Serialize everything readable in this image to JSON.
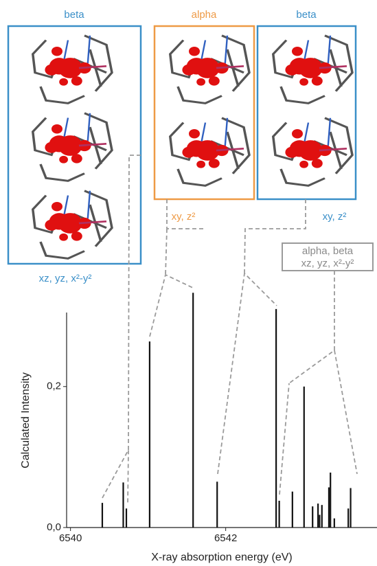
{
  "chart_data": {
    "type": "stick",
    "x_label": "X-ray absorption energy (eV)",
    "y_label": "Calculated Intensity",
    "x": [
      6540.41,
      6540.68,
      6540.72,
      6541.02,
      6541.58,
      6541.89,
      6542.65,
      6542.69,
      6542.86,
      6543.01,
      6543.12,
      6543.19,
      6543.21,
      6543.24,
      6543.33,
      6543.35,
      6543.4,
      6543.58,
      6543.61
    ],
    "values": [
      0.035,
      0.064,
      0.027,
      0.264,
      0.333,
      0.065,
      0.31,
      0.038,
      0.051,
      0.2,
      0.03,
      0.034,
      0.018,
      0.032,
      0.057,
      0.078,
      0.013,
      0.027,
      0.056
    ],
    "color": "#111111",
    "xlim": [
      6539.95,
      6543.95
    ],
    "ylim": [
      0,
      0.305
    ],
    "xticks": [
      6540,
      6542
    ],
    "yticks": [
      {
        "value": 0,
        "label": "0,0"
      },
      {
        "value": 0.2,
        "label": "0,2"
      }
    ],
    "annotations": [
      "beta",
      "alpha",
      "beta",
      "xz, yz, x²-y²",
      "xy, z²",
      "xy, z²",
      "alpha, beta",
      "xz, yz, x²-y²"
    ]
  }
}
